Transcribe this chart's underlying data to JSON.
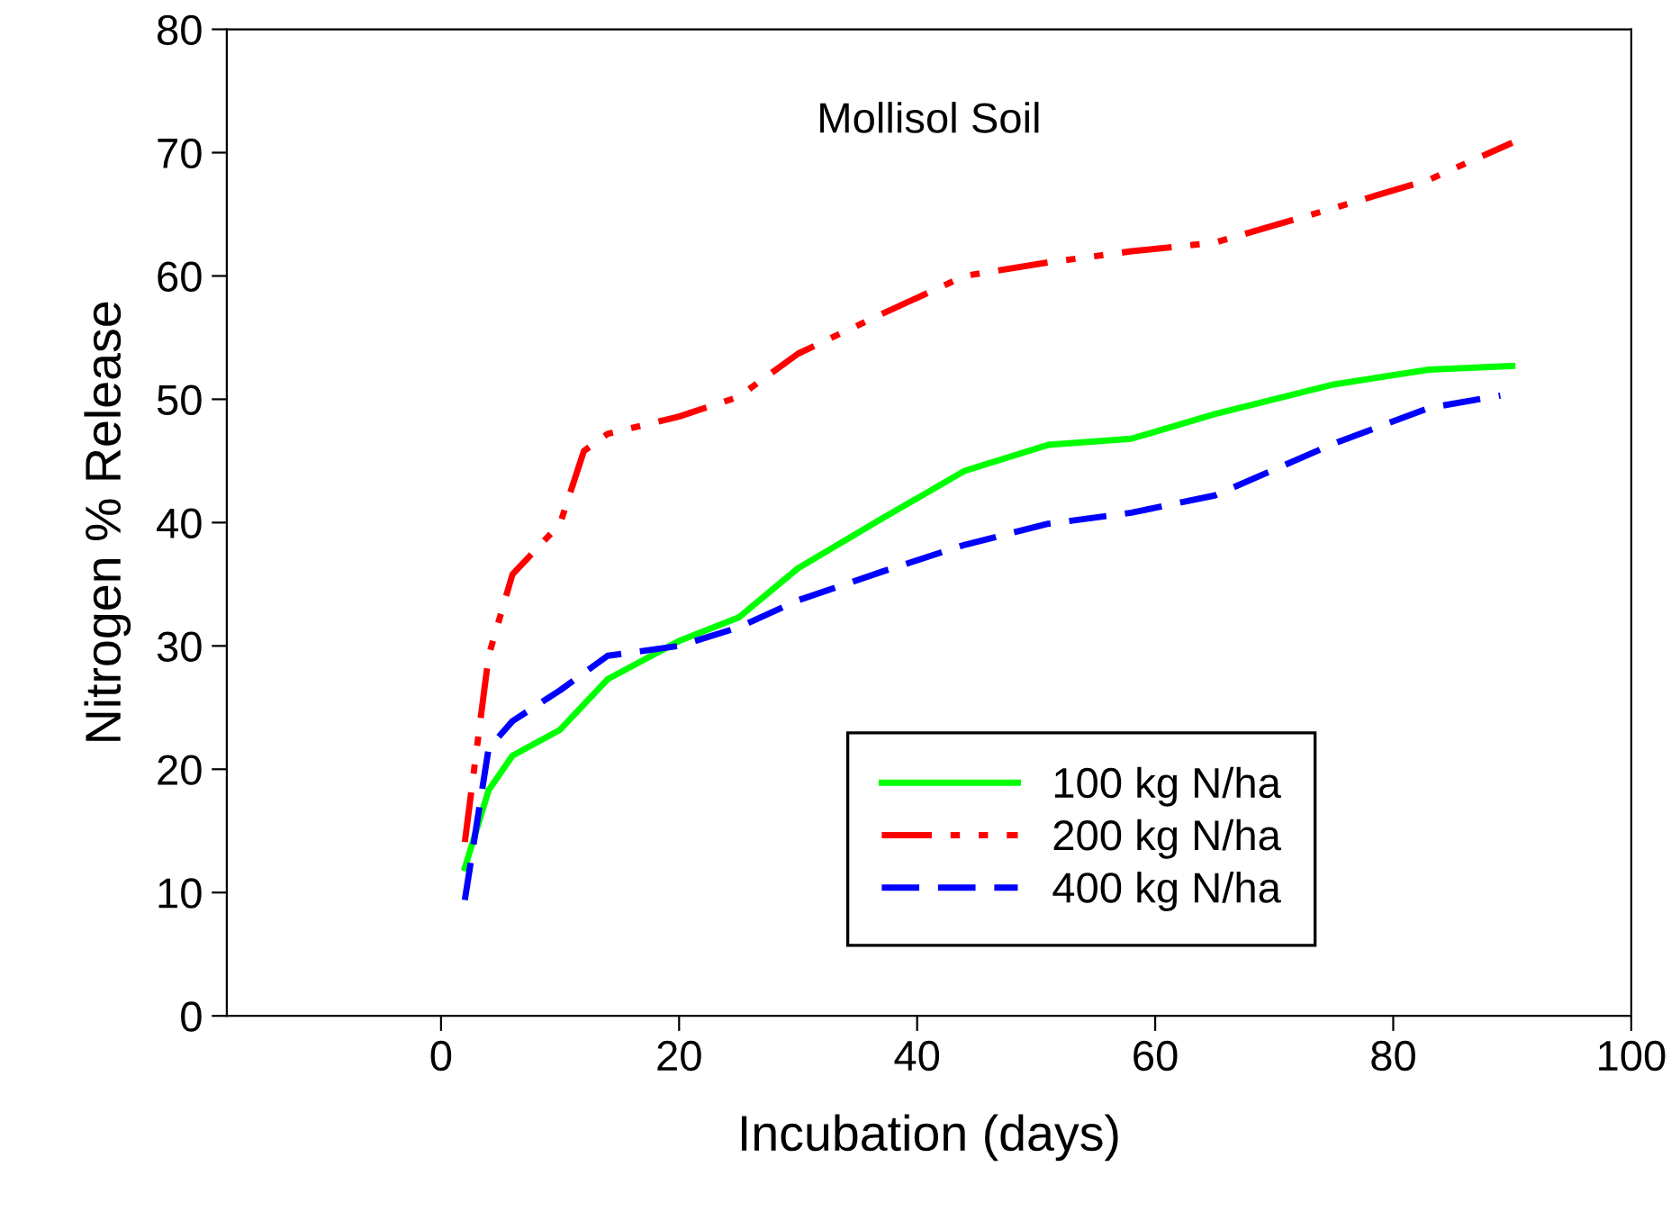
{
  "chart_data": {
    "type": "line",
    "title": "Mollisol Soil",
    "xlabel": "Incubation (days)",
    "ylabel": "Nitrogen % Release",
    "xlim": [
      -18,
      100
    ],
    "xticks": [
      0,
      20,
      40,
      60,
      80,
      100
    ],
    "ylim": [
      0,
      80
    ],
    "yticks": [
      0,
      10,
      20,
      30,
      40,
      50,
      60,
      70,
      80
    ],
    "grid": false,
    "legend": "bottom right",
    "marker": "none",
    "series": [
      {
        "name": "100 kg N/ha",
        "color": "#00ff00",
        "line_style": "solid",
        "x": [
          2,
          4,
          6,
          10,
          14,
          20,
          25,
          30,
          37,
          44,
          51,
          58,
          65,
          75,
          83,
          90
        ],
        "values": [
          12.0,
          18.3,
          21.1,
          23.2,
          27.3,
          30.4,
          32.3,
          36.3,
          40.3,
          44.2,
          46.3,
          46.8,
          48.8,
          51.2,
          52.4,
          52.7
        ]
      },
      {
        "name": "200 kg N/ha",
        "color": "#ff0000",
        "line_style": "dashdotdot",
        "x": [
          2,
          4,
          6,
          10,
          12,
          14,
          20,
          25,
          30,
          37,
          44,
          51,
          58,
          65,
          75,
          83,
          90
        ],
        "values": [
          14.1,
          29.2,
          35.8,
          39.9,
          45.8,
          47.2,
          48.6,
          50.2,
          53.7,
          56.9,
          60.0,
          61.1,
          62.0,
          62.7,
          65.5,
          67.8,
          70.8
        ]
      },
      {
        "name": "400 kg N/ha",
        "color": "#0000ff",
        "line_style": "dashed",
        "x": [
          2,
          4,
          6,
          10,
          14,
          20,
          25,
          30,
          37,
          44,
          51,
          58,
          65,
          75,
          83,
          89
        ],
        "values": [
          9.4,
          21.7,
          23.9,
          26.4,
          29.2,
          30.0,
          31.5,
          33.7,
          36.0,
          38.2,
          39.9,
          40.8,
          42.2,
          46.4,
          49.3,
          50.3
        ]
      }
    ]
  }
}
